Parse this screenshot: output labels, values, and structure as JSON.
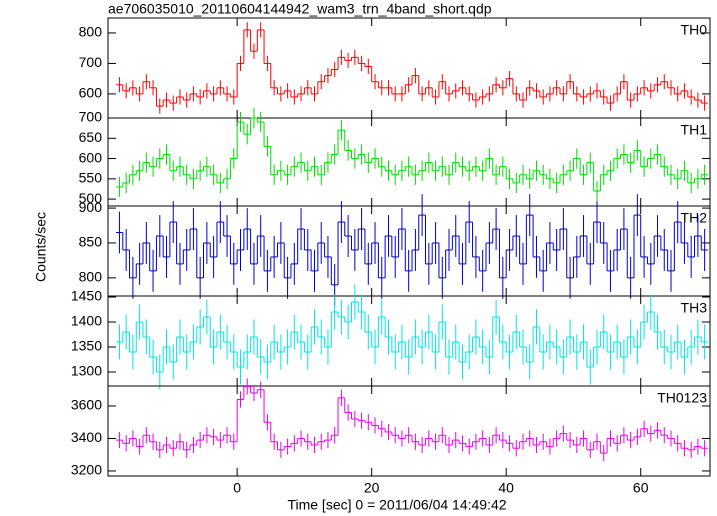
{
  "chart_data": {
    "type": "step",
    "title": "ae706035010_20110604144942_wam3_trn_4band_short.qdp",
    "xlabel": "Time [sec] 0 = 2011/06/04 14:49:42",
    "ylabel": "Counts/sec",
    "xlim": [
      -19.2,
      70.3
    ],
    "xticks": [
      0,
      20,
      40,
      60
    ],
    "x": [
      -17.5,
      -16.5,
      -15.5,
      -14.5,
      -13.5,
      -12.5,
      -11.5,
      -10.5,
      -9.5,
      -8.5,
      -7.5,
      -6.5,
      -5.5,
      -4.5,
      -3.5,
      -2.5,
      -1.5,
      -0.5,
      0.5,
      1.5,
      2.5,
      3.5,
      4.5,
      5.5,
      6.5,
      7.5,
      8.5,
      9.5,
      10.5,
      11.5,
      12.5,
      13.5,
      14.5,
      15.5,
      16.5,
      17.5,
      18.5,
      19.5,
      20.5,
      21.5,
      22.5,
      23.5,
      24.5,
      25.5,
      26.5,
      27.5,
      28.5,
      29.5,
      30.5,
      31.5,
      32.5,
      33.5,
      34.5,
      35.5,
      36.5,
      37.5,
      38.5,
      39.5,
      40.5,
      41.5,
      42.5,
      43.5,
      44.5,
      45.5,
      46.5,
      47.5,
      48.5,
      49.5,
      50.5,
      51.5,
      52.5,
      53.5,
      54.5,
      55.5,
      56.5,
      57.5,
      58.5,
      59.5,
      60.5,
      61.5,
      62.5,
      63.5,
      64.5,
      65.5,
      66.5,
      67.5,
      68.5,
      69.5
    ],
    "panels": [
      {
        "name": "TH0",
        "color": "#ff0000",
        "error": 25,
        "ylim": [
          521,
          849
        ],
        "yticks": [
          600,
          700,
          800
        ],
        "values": [
          630,
          610,
          620,
          600,
          640,
          620,
          560,
          580,
          570,
          590,
          580,
          600,
          590,
          610,
          600,
          620,
          600,
          590,
          700,
          810,
          740,
          810,
          700,
          620,
          600,
          610,
          590,
          600,
          620,
          600,
          640,
          660,
          680,
          720,
          710,
          720,
          700,
          690,
          640,
          620,
          620,
          600,
          600,
          630,
          660,
          600,
          620,
          590,
          640,
          600,
          610,
          620,
          600,
          580,
          590,
          600,
          630,
          620,
          650,
          600,
          580,
          620,
          610,
          590,
          600,
          620,
          600,
          640,
          600,
          590,
          600,
          610,
          590,
          570,
          600,
          640,
          580,
          600,
          620,
          610,
          630,
          640,
          620,
          600,
          610,
          590,
          580,
          570
        ]
      },
      {
        "name": "TH1",
        "color": "#00dd00",
        "error": 25,
        "ylim": [
          483,
          700
        ],
        "yticks": [
          500,
          550,
          600,
          650,
          700
        ],
        "values": [
          530,
          540,
          560,
          570,
          590,
          580,
          600,
          610,
          570,
          580,
          560,
          550,
          570,
          580,
          560,
          540,
          550,
          600,
          690,
          660,
          700,
          690,
          630,
          560,
          570,
          560,
          580,
          590,
          570,
          580,
          560,
          590,
          610,
          670,
          620,
          600,
          610,
          590,
          600,
          580,
          570,
          560,
          570,
          580,
          560,
          570,
          590,
          570,
          580,
          560,
          590,
          580,
          570,
          580,
          570,
          600,
          560,
          580,
          550,
          540,
          560,
          550,
          570,
          560,
          550,
          540,
          560,
          570,
          600,
          560,
          590,
          520,
          560,
          570,
          600,
          610,
          590,
          620,
          580,
          600,
          610,
          580,
          560,
          550,
          570,
          540,
          550,
          560
        ]
      },
      {
        "name": "TH2",
        "color": "#0000cc",
        "error": 30,
        "ylim": [
          774,
          903
        ],
        "yticks": [
          800,
          850,
          900
        ],
        "values": [
          865,
          840,
          800,
          820,
          850,
          810,
          860,
          830,
          880,
          820,
          840,
          870,
          800,
          850,
          830,
          880,
          860,
          820,
          840,
          870,
          820,
          860,
          810,
          830,
          850,
          800,
          820,
          870,
          840,
          810,
          850,
          830,
          790,
          880,
          860,
          840,
          870,
          820,
          850,
          800,
          860,
          830,
          870,
          810,
          840,
          890,
          820,
          850,
          800,
          840,
          860,
          820,
          880,
          830,
          810,
          850,
          870,
          800,
          840,
          860,
          820,
          890,
          830,
          810,
          850,
          840,
          870,
          800,
          830,
          860,
          820,
          880,
          850,
          810,
          840,
          870,
          800,
          890,
          830,
          820,
          860,
          840,
          810,
          880,
          850,
          830,
          860,
          840
        ]
      },
      {
        "name": "TH3",
        "color": "#00e5e5",
        "error": 35,
        "ylim": [
          1272,
          1452
        ],
        "yticks": [
          1300,
          1350,
          1400,
          1450
        ],
        "values": [
          1360,
          1380,
          1340,
          1400,
          1370,
          1330,
          1300,
          1350,
          1320,
          1370,
          1340,
          1360,
          1390,
          1410,
          1350,
          1380,
          1360,
          1340,
          1310,
          1340,
          1370,
          1330,
          1320,
          1360,
          1340,
          1350,
          1380,
          1360,
          1340,
          1390,
          1370,
          1350,
          1420,
          1410,
          1400,
          1440,
          1420,
          1380,
          1350,
          1410,
          1370,
          1340,
          1360,
          1330,
          1370,
          1350,
          1380,
          1340,
          1400,
          1330,
          1360,
          1320,
          1340,
          1370,
          1350,
          1330,
          1410,
          1360,
          1340,
          1380,
          1350,
          1320,
          1390,
          1340,
          1360,
          1350,
          1330,
          1370,
          1340,
          1360,
          1310,
          1350,
          1380,
          1340,
          1360,
          1330,
          1370,
          1350,
          1400,
          1420,
          1380,
          1350,
          1340,
          1360,
          1330,
          1350,
          1370,
          1360
        ]
      },
      {
        "name": "TH0123",
        "color": "#ee00ee",
        "error": 50,
        "ylim": [
          3169,
          3723
        ],
        "yticks": [
          3200,
          3400,
          3600
        ],
        "values": [
          3390,
          3370,
          3400,
          3350,
          3420,
          3380,
          3330,
          3360,
          3340,
          3380,
          3330,
          3360,
          3390,
          3420,
          3410,
          3390,
          3420,
          3380,
          3640,
          3720,
          3680,
          3700,
          3500,
          3380,
          3330,
          3350,
          3370,
          3400,
          3380,
          3360,
          3380,
          3390,
          3420,
          3650,
          3560,
          3520,
          3510,
          3500,
          3480,
          3460,
          3440,
          3420,
          3400,
          3420,
          3380,
          3360,
          3400,
          3380,
          3420,
          3360,
          3390,
          3370,
          3350,
          3380,
          3400,
          3360,
          3420,
          3390,
          3370,
          3340,
          3380,
          3400,
          3360,
          3380,
          3350,
          3400,
          3430,
          3390,
          3360,
          3400,
          3330,
          3380,
          3310,
          3400,
          3370,
          3420,
          3390,
          3410,
          3460,
          3430,
          3450,
          3420,
          3400,
          3370,
          3340,
          3330,
          3350,
          3340
        ]
      }
    ]
  }
}
